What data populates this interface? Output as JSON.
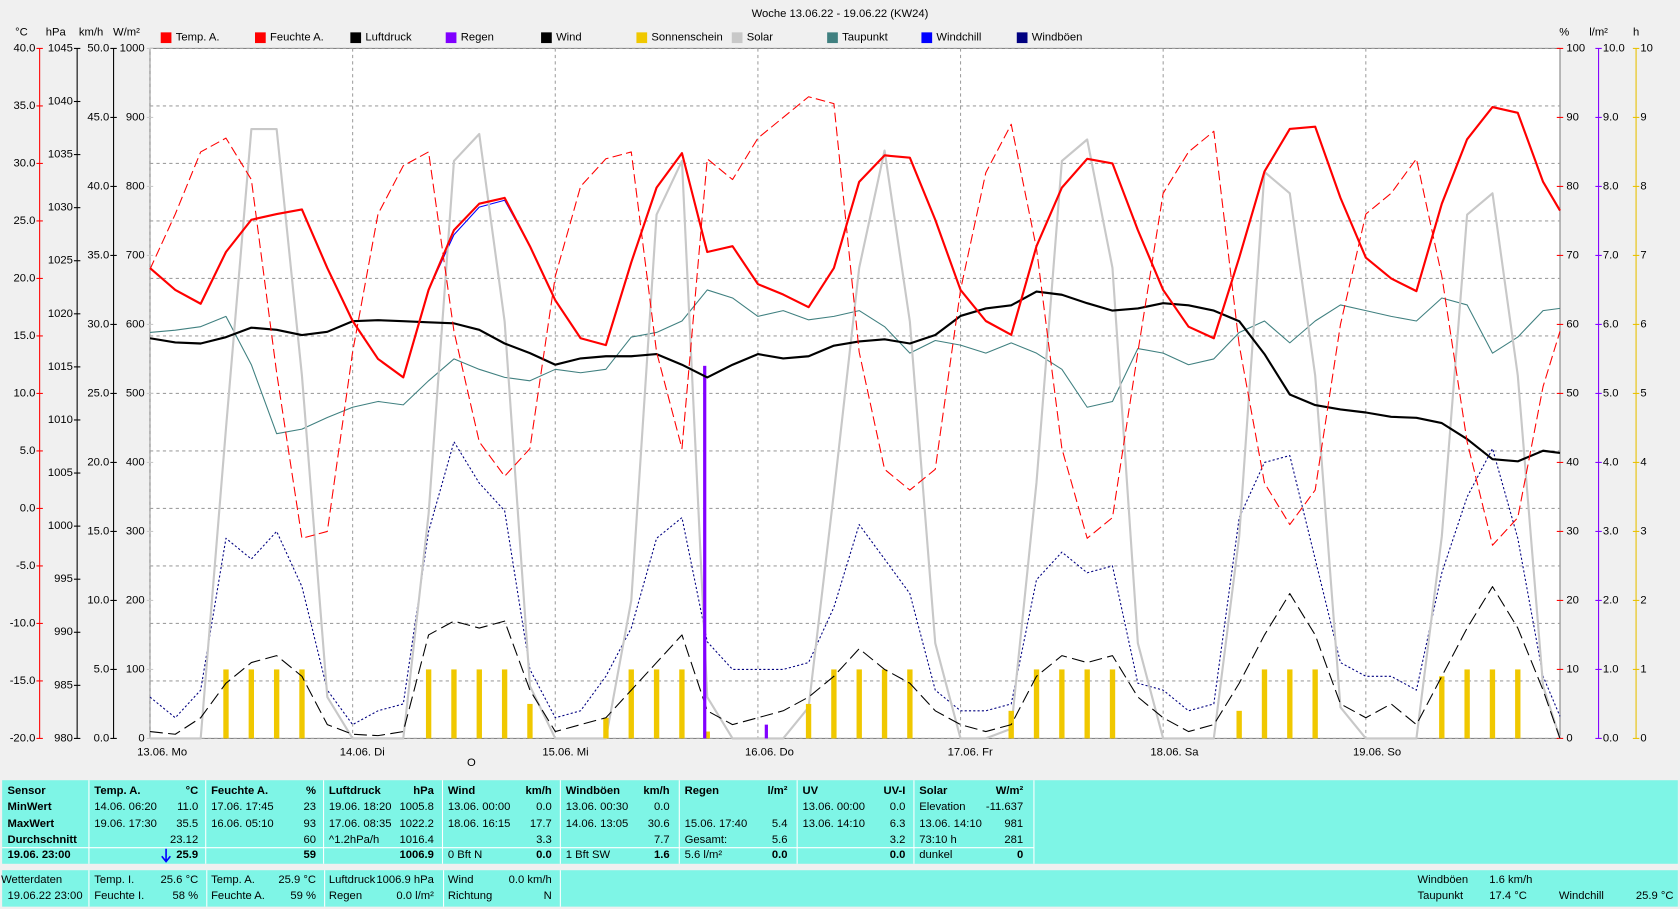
{
  "chart_data": {
    "type": "line",
    "title": "Woche 13.06.22 - 19.06.22 (KW24)",
    "annotations": [
      "O"
    ],
    "x": [
      0,
      3,
      6,
      9,
      12,
      15,
      18,
      21,
      24,
      27,
      30,
      33,
      36,
      39,
      42,
      45,
      48,
      51,
      54,
      57,
      60,
      63,
      66,
      69,
      72,
      75,
      78,
      81,
      84,
      87,
      90,
      93,
      96,
      99,
      102,
      105,
      108,
      111,
      114,
      117,
      120,
      123,
      126,
      129,
      132,
      135,
      138,
      141,
      144,
      147,
      150,
      153,
      156,
      159,
      162,
      165,
      167
    ],
    "xlim": [
      0,
      167
    ],
    "xticks": [
      {
        "value": 0,
        "label": "13.06. Mo"
      },
      {
        "value": 24,
        "label": "14.06. Di"
      },
      {
        "value": 48,
        "label": "15.06. Mi"
      },
      {
        "value": 72,
        "label": "16.06. Do"
      },
      {
        "value": 96,
        "label": "17.06. Fr"
      },
      {
        "value": 120,
        "label": "18.06. Sa"
      },
      {
        "value": 144,
        "label": "19.06. So"
      }
    ],
    "grid": true,
    "axes": [
      {
        "unit": "°C",
        "color": "#ff0000",
        "grid": true,
        "ylim": [
          -20,
          40
        ],
        "yticks": [
          {
            "value": -20,
            "label": "-20.0"
          },
          {
            "value": -15,
            "label": "-15.0"
          },
          {
            "value": -10,
            "label": "-10.0"
          },
          {
            "value": -5,
            "label": "-5.0"
          },
          {
            "value": 0,
            "label": "0.0"
          },
          {
            "value": 5,
            "label": "5.0"
          },
          {
            "value": 10,
            "label": "10.0"
          },
          {
            "value": 15,
            "label": "15.0"
          },
          {
            "value": 20,
            "label": "20.0"
          },
          {
            "value": 25,
            "label": "25.0"
          },
          {
            "value": 30,
            "label": "30.0"
          },
          {
            "value": 35,
            "label": "35.0"
          },
          {
            "value": 40,
            "label": "40.0"
          }
        ]
      },
      {
        "unit": "hPa",
        "color": "#000000",
        "grid": false,
        "ylim": [
          980,
          1045
        ],
        "yticks": [
          980,
          985,
          990,
          995,
          1000,
          1005,
          1010,
          1015,
          1020,
          1025,
          1030,
          1035,
          1040,
          1045
        ]
      },
      {
        "unit": "km/h",
        "color": "#000000",
        "grid": false,
        "ylim": [
          0,
          50
        ],
        "yticks": [
          {
            "value": 0,
            "label": "0.0"
          },
          {
            "value": 5,
            "label": "5.0"
          },
          {
            "value": 10,
            "label": "10.0"
          },
          {
            "value": 15,
            "label": "15.0"
          },
          {
            "value": 20,
            "label": "20.0"
          },
          {
            "value": 25,
            "label": "25.0"
          },
          {
            "value": 30,
            "label": "30.0"
          },
          {
            "value": 35,
            "label": "35.0"
          },
          {
            "value": 40,
            "label": "40.0"
          },
          {
            "value": 45,
            "label": "45.0"
          },
          {
            "value": 50,
            "label": "50.0"
          }
        ]
      },
      {
        "unit": "W/m²",
        "color": "#c8c8c8",
        "grid": false,
        "ylim": [
          0,
          1000
        ],
        "yticks": [
          0,
          100,
          200,
          300,
          400,
          500,
          600,
          700,
          800,
          900,
          1000
        ]
      },
      {
        "unit": "%",
        "color": "#ff0000",
        "grid": false,
        "ylim": [
          0,
          100
        ],
        "yticks": [
          0,
          10,
          20,
          30,
          40,
          50,
          60,
          70,
          80,
          90,
          100
        ]
      },
      {
        "unit": "l/m²",
        "color": "#8000ff",
        "grid": false,
        "ylim": [
          0,
          10
        ],
        "yticks": [
          {
            "value": 0,
            "label": "0.0"
          },
          {
            "value": 1,
            "label": "1.0"
          },
          {
            "value": 2,
            "label": "2.0"
          },
          {
            "value": 3,
            "label": "3.0"
          },
          {
            "value": 4,
            "label": "4.0"
          },
          {
            "value": 5,
            "label": "5.0"
          },
          {
            "value": 6,
            "label": "6.0"
          },
          {
            "value": 7,
            "label": "7.0"
          },
          {
            "value": 8,
            "label": "8.0"
          },
          {
            "value": 9,
            "label": "9.0"
          },
          {
            "value": 10,
            "label": "10.0"
          }
        ]
      },
      {
        "unit": "h",
        "color": "#e8c000",
        "grid": false,
        "ylim": [
          0,
          10
        ],
        "yticks": [
          0,
          1,
          2,
          3,
          4,
          5,
          6,
          7,
          8,
          9,
          10
        ]
      }
    ],
    "series": [
      {
        "name": "Temp. A.",
        "type": "line",
        "axis": "°C",
        "color": "#ff0000",
        "style": "solid",
        "width": 2,
        "values": [
          20.9,
          19.0,
          17.8,
          22.3,
          25.1,
          25.6,
          26.0,
          20.9,
          16.3,
          13.0,
          11.4,
          19.0,
          24.2,
          26.5,
          27.0,
          22.8,
          18.1,
          14.8,
          14.2,
          21.4,
          27.9,
          30.9,
          22.3,
          22.8,
          19.5,
          18.6,
          17.5,
          20.9,
          28.4,
          30.7,
          30.5,
          25.1,
          19.0,
          16.3,
          15.1,
          22.8,
          27.9,
          30.4,
          30.0,
          24.2,
          19.0,
          15.8,
          14.8,
          21.8,
          29.3,
          33.0,
          33.2,
          27.0,
          21.8,
          20.0,
          18.9,
          26.5,
          32.1,
          34.9,
          34.4,
          28.4,
          25.9
        ]
      },
      {
        "name": "Feuchte A.",
        "type": "line",
        "axis": "%",
        "color": "#ff0000",
        "style": "dashed",
        "width": 1,
        "values": [
          68,
          76,
          85,
          87,
          81,
          53,
          29,
          30,
          56,
          76,
          83,
          85,
          59,
          43,
          38,
          42,
          67,
          80,
          84,
          85,
          56,
          42,
          84,
          81,
          87,
          90,
          93,
          92,
          56,
          39,
          36,
          39,
          65,
          82,
          89,
          71,
          42,
          29,
          32,
          56,
          79,
          85,
          88,
          57,
          37,
          31,
          36,
          60,
          76,
          79,
          84,
          67,
          43,
          28,
          32,
          51,
          59
        ]
      },
      {
        "name": "Luftdruck",
        "type": "line",
        "axis": "hPa",
        "color": "#000000",
        "style": "solid",
        "width": 2,
        "values": [
          1017.7,
          1017.3,
          1017.2,
          1017.8,
          1018.7,
          1018.5,
          1018.0,
          1018.3,
          1019.3,
          1019.4,
          1019.3,
          1019.2,
          1019.1,
          1018.5,
          1017.2,
          1016.3,
          1015.2,
          1015.8,
          1016.0,
          1016.0,
          1016.2,
          1015.2,
          1014.0,
          1015.2,
          1016.2,
          1015.8,
          1016.0,
          1017.0,
          1017.4,
          1017.6,
          1017.2,
          1018.0,
          1019.8,
          1020.5,
          1020.8,
          1022.1,
          1021.8,
          1021.0,
          1020.3,
          1020.5,
          1021.0,
          1020.8,
          1020.3,
          1019.3,
          1016.2,
          1012.4,
          1011.4,
          1011.0,
          1010.7,
          1010.3,
          1010.2,
          1009.7,
          1008.2,
          1006.3,
          1006.1,
          1007.1,
          1006.9
        ]
      },
      {
        "name": "Regen",
        "type": "bar",
        "axis": "l/m²",
        "color": "#8000ff",
        "x": [
          65.7,
          73
        ],
        "values": [
          5.4,
          0.2
        ]
      },
      {
        "name": "Wind",
        "type": "line",
        "axis": "km/h",
        "color": "#000000",
        "style": "longdash",
        "width": 1,
        "values": [
          0.5,
          0.3,
          1.5,
          4.0,
          5.5,
          6.0,
          4.5,
          1.0,
          0.3,
          0.2,
          0.5,
          7.5,
          8.5,
          8.0,
          8.5,
          3.5,
          0.5,
          1.0,
          1.5,
          3.5,
          5.5,
          7.5,
          2.0,
          1.0,
          1.5,
          2.0,
          3.0,
          4.5,
          6.5,
          5.0,
          4.0,
          2.0,
          1.0,
          0.5,
          1.0,
          4.5,
          6.0,
          5.5,
          6.0,
          3.0,
          1.5,
          0.5,
          1.0,
          4.0,
          7.5,
          10.5,
          7.5,
          2.5,
          1.5,
          2.5,
          1.0,
          4.5,
          8.0,
          11.0,
          8.0,
          3.5,
          0.0
        ]
      },
      {
        "name": "Sonnenschein",
        "type": "bar",
        "axis": "h",
        "color": "#f0c800",
        "values": [
          0,
          0,
          0,
          1,
          1,
          1,
          1,
          0,
          0,
          0,
          0,
          1,
          1,
          1,
          1,
          0.5,
          0,
          0,
          0.3,
          1,
          1,
          1,
          0.1,
          0,
          0,
          0,
          0.5,
          1,
          1,
          1,
          1,
          0,
          0,
          0,
          0.4,
          1,
          1,
          1,
          1,
          0,
          0,
          0,
          0,
          0.4,
          1,
          1,
          1,
          0,
          0,
          0,
          0,
          0.9,
          1,
          1,
          1,
          0,
          0
        ]
      },
      {
        "name": "Solar",
        "type": "line",
        "axis": "W/m²",
        "color": "#c8c8c8",
        "style": "solid",
        "width": 2,
        "values": [
          0,
          0,
          0,
          449,
          883,
          883,
          526,
          60,
          0,
          0,
          0,
          325,
          837,
          876,
          604,
          76,
          0,
          0,
          0,
          200,
          759,
          837,
          60,
          0,
          0,
          0,
          45,
          356,
          682,
          852,
          604,
          138,
          0,
          0,
          14,
          371,
          837,
          868,
          682,
          138,
          0,
          0,
          0,
          293,
          821,
          790,
          526,
          45,
          0,
          0,
          0,
          293,
          759,
          790,
          526,
          76,
          0
        ]
      },
      {
        "name": "Taupunkt",
        "type": "line",
        "axis": "°C",
        "color": "#408080",
        "style": "solid",
        "width": 1,
        "values": [
          15.3,
          15.5,
          15.8,
          16.7,
          12.5,
          6.5,
          6.9,
          7.9,
          8.8,
          9.3,
          9.0,
          11.1,
          13.0,
          12.1,
          11.4,
          11.1,
          12.1,
          11.8,
          12.1,
          14.9,
          15.3,
          16.3,
          19.0,
          18.3,
          16.7,
          17.2,
          16.4,
          16.7,
          17.2,
          15.8,
          13.5,
          14.6,
          14.2,
          13.5,
          14.4,
          13.5,
          12.1,
          8.8,
          9.3,
          13.9,
          13.5,
          12.5,
          13.0,
          15.3,
          16.3,
          14.4,
          16.3,
          17.7,
          17.2,
          16.7,
          16.3,
          18.3,
          17.7,
          13.5,
          14.9,
          17.2,
          17.4
        ]
      },
      {
        "name": "Windchill",
        "type": "line",
        "axis": "°C",
        "color": "#0000ff",
        "style": "solid",
        "width": 1,
        "values": [
          20.9,
          19.0,
          17.8,
          22.3,
          25.1,
          25.6,
          26.0,
          20.9,
          16.3,
          13.0,
          11.4,
          19.0,
          23.8,
          26.2,
          26.8,
          22.8,
          18.1,
          14.8,
          14.2,
          21.4,
          27.9,
          30.9,
          22.3,
          22.8,
          19.5,
          18.6,
          17.5,
          20.9,
          28.4,
          30.7,
          30.5,
          25.1,
          19.0,
          16.3,
          15.1,
          22.8,
          27.9,
          30.4,
          30.0,
          24.2,
          19.0,
          15.8,
          14.8,
          21.8,
          29.3,
          33.0,
          33.2,
          27.0,
          21.8,
          20.0,
          18.9,
          26.5,
          32.1,
          34.9,
          34.4,
          28.4,
          25.9
        ]
      },
      {
        "name": "Windböen",
        "type": "line",
        "axis": "km/h",
        "color": "#000080",
        "style": "dotted",
        "width": 1,
        "values": [
          3.0,
          1.5,
          3.5,
          14.5,
          13.0,
          15.0,
          11.0,
          3.5,
          1.0,
          2.0,
          2.5,
          15.0,
          21.5,
          18.5,
          16.5,
          5.0,
          1.5,
          2.0,
          4.5,
          8.0,
          14.5,
          16.0,
          7.0,
          5.0,
          5.0,
          5.0,
          5.5,
          9.5,
          15.5,
          13.0,
          10.5,
          3.5,
          2.0,
          2.0,
          2.5,
          11.5,
          13.5,
          12.0,
          12.5,
          4.0,
          3.5,
          2.0,
          2.5,
          16.0,
          20.0,
          20.5,
          13.0,
          5.5,
          4.5,
          4.5,
          3.5,
          12.0,
          17.5,
          21.0,
          14.5,
          4.5,
          1.6
        ]
      }
    ]
  },
  "stats": {
    "sensor": {
      "header": "Sensor",
      "rows": [
        "MinWert",
        "MaxWert",
        "Durchschnitt",
        "19.06. 23:00"
      ]
    },
    "groups": [
      {
        "header": "Temp. A.",
        "unit": "°C",
        "rows": [
          [
            "14.06. 06:20",
            "11.0"
          ],
          [
            "19.06. 17:30",
            "35.5"
          ],
          [
            null,
            "23.12"
          ],
          [
            null,
            "25.9"
          ]
        ]
      },
      {
        "header": "Feuchte A.",
        "unit": "%",
        "rows": [
          [
            "17.06. 17:45",
            "23"
          ],
          [
            "16.06. 05:10",
            "93"
          ],
          [
            null,
            "60"
          ],
          [
            null,
            "59"
          ]
        ]
      },
      {
        "header": "Luftdruck",
        "unit": "hPa",
        "rows": [
          [
            "19.06. 18:20",
            "1005.8"
          ],
          [
            "17.06. 08:35",
            "1022.2"
          ],
          [
            "^1.2hPa/h",
            "1016.4"
          ],
          [
            null,
            "1006.9"
          ]
        ]
      },
      {
        "header": "Wind",
        "unit": "km/h",
        "rows": [
          [
            "13.06. 00:00",
            "0.0"
          ],
          [
            "18.06. 16:15",
            "17.7"
          ],
          [
            null,
            "3.3"
          ],
          [
            "0 Bft N",
            "0.0"
          ]
        ]
      },
      {
        "header": "Windböen",
        "unit": "km/h",
        "rows": [
          [
            "13.06. 00:30",
            "0.0"
          ],
          [
            "14.06. 13:05",
            "30.6"
          ],
          [
            null,
            "7.7"
          ],
          [
            "1 Bft SW",
            "1.6"
          ]
        ]
      },
      {
        "header": "Regen",
        "unit": "l/m²",
        "rows": [
          [
            null,
            null
          ],
          [
            "15.06. 17:40",
            "5.4"
          ],
          [
            "Gesamt:",
            "5.6"
          ],
          [
            "5.6 l/m²",
            "0.0"
          ]
        ]
      },
      {
        "header": "UV",
        "unit": "UV-I",
        "rows": [
          [
            "13.06. 00:00",
            "0.0"
          ],
          [
            "13.06. 14:10",
            "6.3"
          ],
          [
            null,
            "3.2"
          ],
          [
            null,
            "0.0"
          ]
        ]
      },
      {
        "header": "Solar",
        "unit": "W/m²",
        "rows": [
          [
            "Elevation",
            "-11.637"
          ],
          [
            "13.06. 14:10",
            "981"
          ],
          [
            "73:10 h",
            "281"
          ],
          [
            "dunkel",
            "0"
          ]
        ]
      }
    ]
  },
  "current": {
    "title": "Wetterdaten",
    "time": "19.06.22 23:00",
    "cells": [
      [
        "Temp. I.",
        "25.6 °C"
      ],
      [
        "Feuchte I.",
        "58 %"
      ],
      [
        "Temp. A.",
        "25.9 °C"
      ],
      [
        "Feuchte A.",
        "59 %"
      ],
      [
        "Luftdruck",
        "1006.9 hPa"
      ],
      [
        "Regen",
        "0.0 l/m²"
      ],
      [
        "Wind",
        "0.0 km/h"
      ],
      [
        "Richtung",
        "N"
      ],
      [
        "Windböen",
        "1.6 km/h"
      ],
      [
        "Taupunkt",
        "17.4 °C"
      ],
      [
        "Windchill",
        "25.9 °C"
      ]
    ]
  }
}
